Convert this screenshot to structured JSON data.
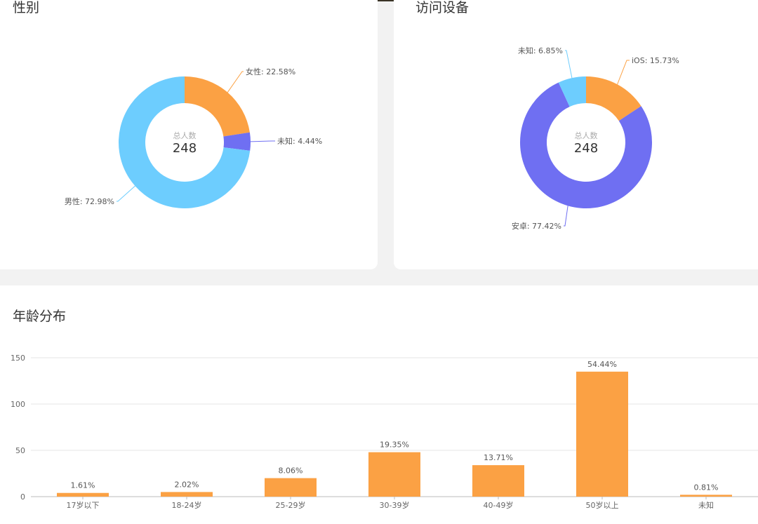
{
  "gender": {
    "title": "性别",
    "center_sub": "总人数",
    "center_total": "248"
  },
  "device": {
    "title": "访问设备",
    "center_sub": "总人数",
    "center_total": "248"
  },
  "age": {
    "title": "年龄分布"
  },
  "chart_data": [
    {
      "type": "pie",
      "title": "性别",
      "donut": true,
      "center_label": "总人数",
      "center_value": 248,
      "categories": [
        "女性",
        "未知",
        "男性"
      ],
      "values": [
        22.58,
        4.44,
        72.98
      ],
      "labels": [
        "女性: 22.58%",
        "未知: 4.44%",
        "男性: 72.98%"
      ],
      "colors": [
        "#fba144",
        "#6f6ff2",
        "#6dcdfe"
      ],
      "unit": "%"
    },
    {
      "type": "pie",
      "title": "访问设备",
      "donut": true,
      "center_label": "总人数",
      "center_value": 248,
      "categories": [
        "iOS",
        "安卓",
        "未知"
      ],
      "values": [
        15.73,
        77.42,
        6.85
      ],
      "labels": [
        "iOS: 15.73%",
        "安卓: 77.42%",
        "未知: 6.85%"
      ],
      "colors": [
        "#fba144",
        "#6f6ff2",
        "#6dcdfe"
      ],
      "unit": "%"
    },
    {
      "type": "bar",
      "title": "年龄分布",
      "categories": [
        "17岁以下",
        "18-24岁",
        "25-29岁",
        "30-39岁",
        "40-49岁",
        "50岁以上",
        "未知"
      ],
      "values": [
        4,
        5,
        20,
        48,
        34,
        135,
        2
      ],
      "data_labels": [
        "1.61%",
        "2.02%",
        "8.06%",
        "19.35%",
        "13.71%",
        "54.44%",
        "0.81%"
      ],
      "ylim": [
        0,
        150
      ],
      "yticks": [
        0,
        50,
        100,
        150
      ],
      "grid": true,
      "color": "#fba144"
    }
  ]
}
